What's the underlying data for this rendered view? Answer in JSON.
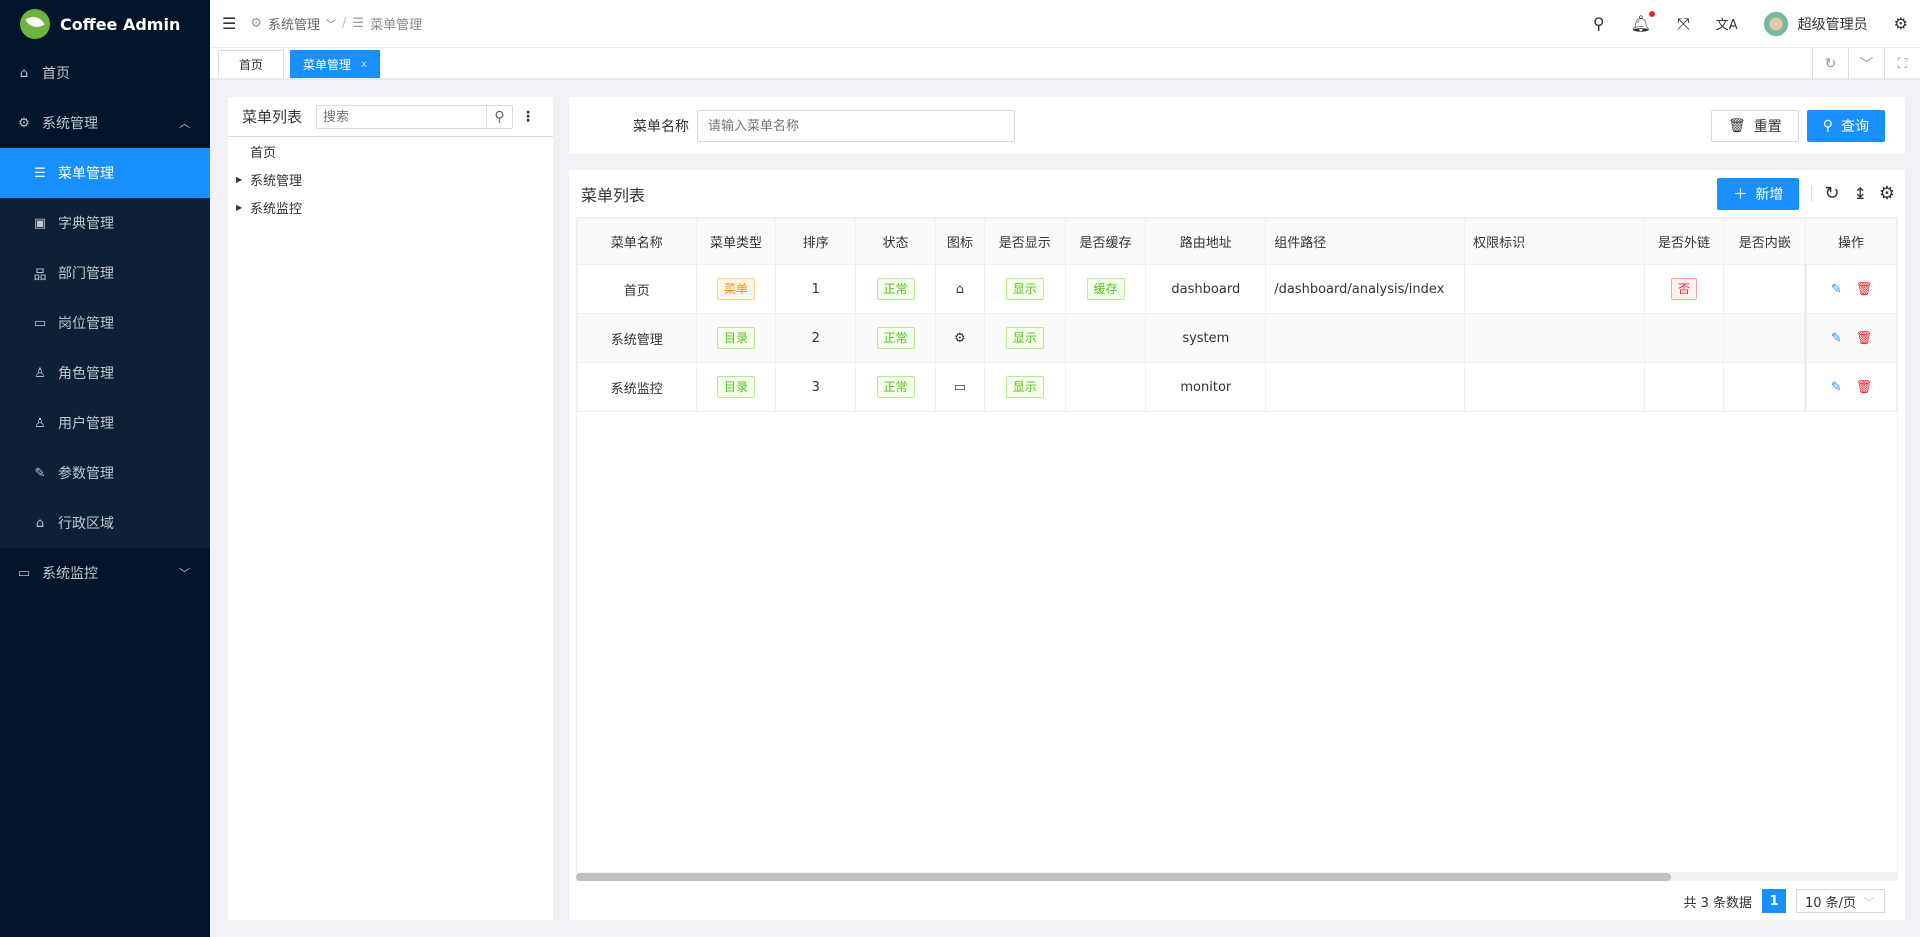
{
  "app": {
    "title": "Coffee Admin"
  },
  "sidebar": {
    "items": [
      {
        "label": "首页",
        "icon": "home-icon"
      },
      {
        "label": "系统管理",
        "icon": "gear-icon",
        "expanded": true,
        "children": [
          {
            "label": "菜单管理",
            "icon": "list-icon",
            "active": true
          },
          {
            "label": "字典管理",
            "icon": "dictionary-icon"
          },
          {
            "label": "部门管理",
            "icon": "org-tree-icon"
          },
          {
            "label": "岗位管理",
            "icon": "id-card-icon"
          },
          {
            "label": "角色管理",
            "icon": "users-icon"
          },
          {
            "label": "用户管理",
            "icon": "user-icon"
          },
          {
            "label": "参数管理",
            "icon": "wrench-icon"
          },
          {
            "label": "行政区域",
            "icon": "bank-icon"
          }
        ]
      },
      {
        "label": "系统监控",
        "icon": "monitor-icon",
        "expanded": false
      }
    ]
  },
  "header": {
    "breadcrumb": [
      "系统管理",
      "菜单管理"
    ],
    "username": "超级管理员",
    "has_notification": true
  },
  "tabs": [
    {
      "label": "首页"
    },
    {
      "label": "菜单管理",
      "active": true,
      "close": "x"
    }
  ],
  "tree": {
    "title": "菜单列表",
    "search_placeholder": "搜索",
    "nodes": [
      {
        "label": "首页"
      },
      {
        "label": "系统管理"
      },
      {
        "label": "系统监控"
      }
    ]
  },
  "search": {
    "label": "菜单名称",
    "placeholder": "请输入菜单名称",
    "reset": "重置",
    "query": "查询"
  },
  "table": {
    "title": "菜单列表",
    "add": "新增",
    "columns": [
      "菜单名称",
      "菜单类型",
      "排序",
      "状态",
      "图标",
      "是否显示",
      "是否缓存",
      "路由地址",
      "组件路径",
      "权限标识",
      "是否外链",
      "是否内嵌",
      "操作"
    ],
    "rows": [
      {
        "name": "首页",
        "type": "菜单",
        "sort": "1",
        "status": "正常",
        "icon": "home-icon",
        "visible": "显示",
        "cache": "缓存",
        "path": "dashboard",
        "component": "/dashboard/analysis/index",
        "perm": "",
        "link": "否",
        "frame": ""
      },
      {
        "name": "系统管理",
        "type": "目录",
        "sort": "2",
        "status": "正常",
        "icon": "gear-icon",
        "visible": "显示",
        "cache": "",
        "path": "system",
        "component": "",
        "perm": "",
        "link": "",
        "frame": ""
      },
      {
        "name": "系统监控",
        "type": "目录",
        "sort": "3",
        "status": "正常",
        "icon": "monitor-icon",
        "visible": "显示",
        "cache": "",
        "path": "monitor",
        "component": "",
        "perm": "",
        "link": "",
        "frame": ""
      }
    ]
  },
  "pagination": {
    "total_text": "共 3 条数据",
    "page": "1",
    "page_size": "10 条/页"
  },
  "colors": {
    "primary": "#1890ff",
    "sidebar": "#001529"
  }
}
